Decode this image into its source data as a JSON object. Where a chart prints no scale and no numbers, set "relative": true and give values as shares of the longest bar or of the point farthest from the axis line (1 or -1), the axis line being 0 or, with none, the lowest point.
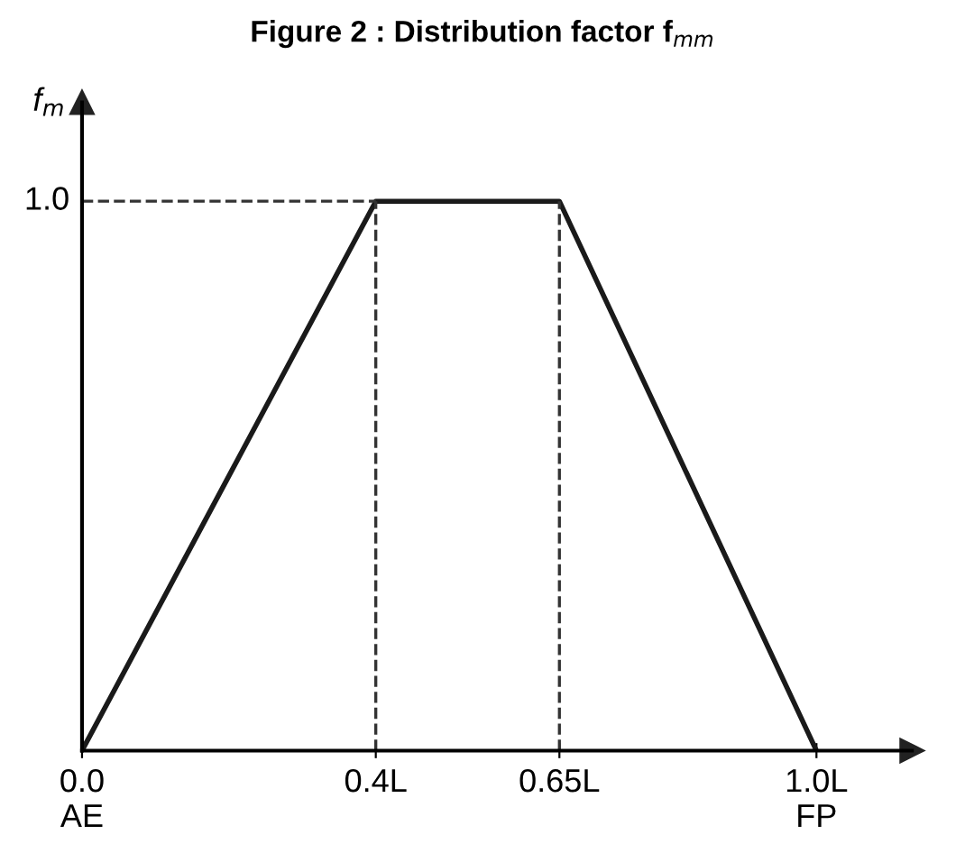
{
  "chart_data": {
    "type": "line",
    "title": "Figure 2 : Distribution factor f$_{mm}$",
    "ylabel": "f$_{m}$",
    "x": [
      0,
      0.4,
      0.65,
      1.0
    ],
    "series": [
      {
        "color": "#1a1a1a",
        "values": [
          0,
          1,
          1,
          0
        ]
      }
    ],
    "relative": true,
    "xlim": [
      0,
      1.13
    ],
    "xticks": [
      {
        "value": 0,
        "label": "0.0\nAE"
      },
      {
        "value": 0.4,
        "label": "0.4L"
      },
      {
        "value": 0.65,
        "label": "0.65L"
      },
      {
        "value": 1.0,
        "label": "1.0L\nFP"
      }
    ],
    "ref_lines": [
      {
        "axis": "y",
        "value": 1,
        "label": "1.0",
        "line_style": "dashed"
      },
      {
        "axis": "x",
        "value": 0.4,
        "line_style": "dashed"
      },
      {
        "axis": "x",
        "value": 0.65,
        "line_style": "dashed"
      }
    ],
    "grid": false,
    "legend": false,
    "marker": "none",
    "line_style": "solid"
  }
}
